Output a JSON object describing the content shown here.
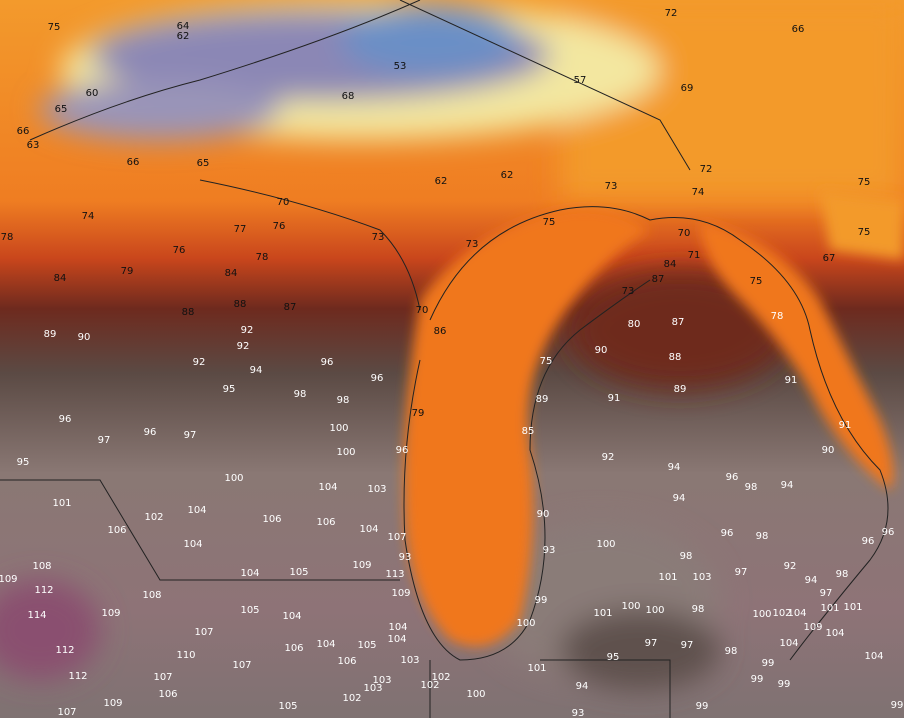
{
  "labels": [
    75,
    64,
    62,
    72,
    66,
    60,
    65,
    66,
    63,
    53,
    57,
    69,
    68,
    66,
    65,
    62,
    62,
    73,
    72,
    74,
    75,
    70,
    74,
    75,
    77,
    76,
    78,
    73,
    76,
    78,
    73,
    70,
    71,
    75,
    67,
    84,
    79,
    84,
    84,
    87,
    75,
    73,
    88,
    87,
    88,
    86,
    70,
    80,
    87,
    78,
    89,
    90,
    92,
    92,
    90,
    88,
    92,
    94,
    96,
    96,
    75,
    95,
    98,
    98,
    89,
    91,
    89,
    91,
    96,
    97,
    96,
    97,
    100,
    79,
    85,
    91,
    95,
    100,
    96,
    92,
    94,
    90,
    100,
    96,
    98,
    94,
    101,
    104,
    103,
    94,
    102,
    104,
    106,
    106,
    104,
    106,
    107,
    90,
    96,
    98,
    96,
    96,
    104,
    93,
    100,
    93,
    109,
    98,
    92,
    108,
    113,
    104,
    105,
    101,
    103,
    97,
    94,
    98,
    109,
    112,
    108,
    109,
    97,
    99,
    105,
    104,
    101,
    100,
    100,
    98,
    100,
    102,
    104,
    101,
    101,
    114,
    109,
    100,
    104,
    107,
    109,
    104,
    104,
    104,
    105,
    106,
    97,
    97,
    98,
    104,
    112,
    110,
    106,
    103,
    95,
    99,
    104,
    107,
    101,
    112,
    107,
    102,
    103,
    99,
    99,
    106,
    103,
    102,
    94,
    102,
    100,
    109,
    105,
    107,
    93,
    99,
    99
  ]
}
